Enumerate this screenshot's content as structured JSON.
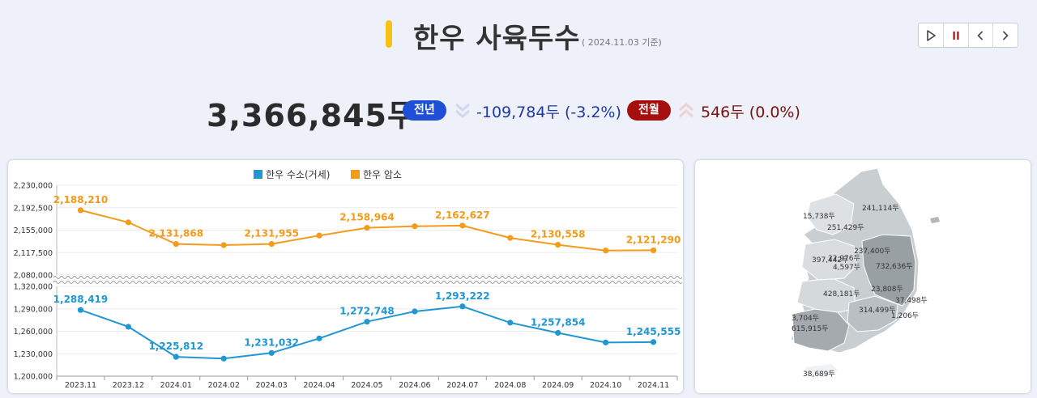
{
  "header": {
    "title": "한우 사육두수",
    "as_of": "( 2024.11.03 기준)",
    "total": "3,366,845두",
    "yoy_label": "전년",
    "yoy_change": "-109,784두 (-3.2%)",
    "mom_label": "전월",
    "mom_change": "546두 (0.0%)"
  },
  "controls": [
    "play-icon",
    "pause-icon",
    "chevron-left-icon",
    "chevron-right-icon"
  ],
  "colors": {
    "male": "#2196d3",
    "female": "#f39b1b",
    "accent": "#f5c217",
    "yoy": "#1f4fd6",
    "mom": "#a70f0f"
  },
  "chart_data": {
    "type": "line",
    "categories": [
      "2023.11",
      "2023.12",
      "2024.01",
      "2024.02",
      "2024.03",
      "2024.04",
      "2024.05",
      "2024.06",
      "2024.07",
      "2024.08",
      "2024.09",
      "2024.10",
      "2024.11"
    ],
    "series": [
      {
        "name": "한우 수소(거세)",
        "values": [
          1288419,
          1266000,
          1225812,
          1223500,
          1231032,
          1250500,
          1272748,
          1286500,
          1293222,
          1271500,
          1257854,
          1245000,
          1245555
        ],
        "labels": [
          "1,288,419",
          "",
          "1,225,812",
          "",
          "1,231,032",
          "",
          "1,272,748",
          "",
          "1,293,222",
          "",
          "1,257,854",
          "",
          "1,245,555"
        ]
      },
      {
        "name": "한우 암소",
        "values": [
          2188210,
          2168000,
          2131868,
          2130000,
          2131955,
          2146000,
          2158964,
          2161500,
          2162627,
          2142000,
          2130558,
          2121000,
          2121290
        ],
        "labels": [
          "2,188,210",
          "",
          "2,131,868",
          "",
          "2,131,955",
          "",
          "2,158,964",
          "",
          "2,162,627",
          "",
          "2,130,558",
          "",
          "2,121,290"
        ]
      }
    ],
    "axes": {
      "upper": {
        "ylim": [
          2080000,
          2230000
        ],
        "ticks": [
          "2,230,000",
          "2,192,500",
          "2,155,000",
          "2,117,500",
          "2,080,000"
        ]
      },
      "lower": {
        "ylim": [
          1200000,
          1320000
        ],
        "ticks": [
          "1,320,000",
          "1,290,000",
          "1,260,000",
          "1,230,000",
          "1,200,000"
        ]
      }
    },
    "legend_position": "top-center"
  },
  "map": {
    "labels": [
      "15,738두",
      "241,114두",
      "251,429두",
      "237,400두",
      "397,442두",
      "22,976두",
      "4,597두",
      "732,636두",
      "23,808두",
      "428,181두",
      "37,498두",
      "314,499두",
      "1,206두",
      "3,704두",
      "615,915두",
      "38,689두"
    ]
  }
}
